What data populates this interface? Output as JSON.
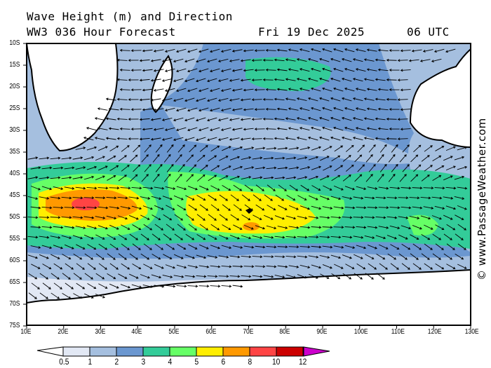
{
  "header": {
    "title": "Wave Height (m) and Direction",
    "subtitle": "WW3 036 Hour Forecast",
    "date": "Fri 19 Dec 2025",
    "time": "06 UTC"
  },
  "map": {
    "lat_labels": [
      "10S",
      "15S",
      "20S",
      "25S",
      "30S",
      "35S",
      "40S",
      "45S",
      "50S",
      "55S",
      "60S",
      "65S",
      "70S",
      "75S"
    ],
    "lon_labels": [
      "10E",
      "20E",
      "30E",
      "40E",
      "50E",
      "60E",
      "70E",
      "80E",
      "90E",
      "100E",
      "110E",
      "120E",
      "130E"
    ],
    "land_color": "#ffffff",
    "coast_color": "#000000"
  },
  "colorbar": {
    "unit": "m",
    "labels": [
      "0.5",
      "1",
      "2",
      "3",
      "4",
      "5",
      "6",
      "8",
      "10",
      "12"
    ],
    "colors": [
      "#e2e8f4",
      "#a5bfdf",
      "#6b97d0",
      "#33cc99",
      "#66ff66",
      "#ffee00",
      "#ff9900",
      "#ff4444",
      "#cc0000"
    ],
    "overflow_color": "#cc00cc",
    "underflow_color": "#ffffff"
  },
  "watermark": "© www.PassageWeather.com"
}
